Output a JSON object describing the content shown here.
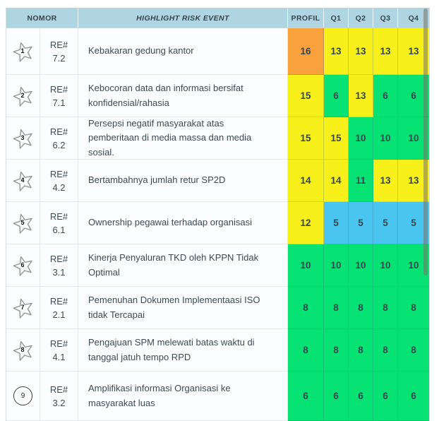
{
  "table": {
    "headers": {
      "nomor": "NOMOR",
      "event": "HIGHLIGHT RISK EVENT",
      "profil": "PROFIL",
      "quarters": [
        "Q1",
        "Q2",
        "Q3",
        "Q4"
      ]
    },
    "rows": [
      {
        "rank": "1",
        "badge_shape": "star",
        "re_label": "RE#",
        "re_code": "7.2",
        "event": "Kebakaran gedung kantor",
        "profil": {
          "value": "16",
          "color": "orange"
        },
        "quarters": [
          {
            "value": "13",
            "color": "yellow"
          },
          {
            "value": "13",
            "color": "yellow"
          },
          {
            "value": "13",
            "color": "yellow"
          },
          {
            "value": "13",
            "color": "yellow"
          }
        ]
      },
      {
        "rank": "2",
        "badge_shape": "star",
        "re_label": "RE#",
        "re_code": "7.1",
        "event": "Kebocoran data dan informasi bersifat konfidensial/rahasia",
        "profil": {
          "value": "15",
          "color": "yellow"
        },
        "quarters": [
          {
            "value": "6",
            "color": "green"
          },
          {
            "value": "13",
            "color": "yellow"
          },
          {
            "value": "6",
            "color": "green"
          },
          {
            "value": "6",
            "color": "green"
          }
        ]
      },
      {
        "rank": "3",
        "badge_shape": "star",
        "re_label": "RE#",
        "re_code": "6.2",
        "event": "Persepsi negatif masyarakat atas pemberitaan di media massa dan media sosial.",
        "profil": {
          "value": "15",
          "color": "yellow"
        },
        "quarters": [
          {
            "value": "15",
            "color": "yellow"
          },
          {
            "value": "10",
            "color": "green"
          },
          {
            "value": "10",
            "color": "green"
          },
          {
            "value": "10",
            "color": "green"
          }
        ]
      },
      {
        "rank": "4",
        "badge_shape": "star",
        "re_label": "RE#",
        "re_code": "4.2",
        "event": "Bertambahnya jumlah retur SP2D",
        "profil": {
          "value": "14",
          "color": "yellow"
        },
        "quarters": [
          {
            "value": "14",
            "color": "yellow"
          },
          {
            "value": "11",
            "color": "green"
          },
          {
            "value": "13",
            "color": "yellow"
          },
          {
            "value": "13",
            "color": "yellow"
          }
        ]
      },
      {
        "rank": "5",
        "badge_shape": "star",
        "re_label": "RE#",
        "re_code": "6.1",
        "event": "Ownership pegawai terhadap organisasi",
        "profil": {
          "value": "12",
          "color": "yellow"
        },
        "quarters": [
          {
            "value": "5",
            "color": "blue"
          },
          {
            "value": "5",
            "color": "blue"
          },
          {
            "value": "5",
            "color": "blue"
          },
          {
            "value": "5",
            "color": "blue"
          }
        ]
      },
      {
        "rank": "6",
        "badge_shape": "star",
        "re_label": "RE#",
        "re_code": "3.1",
        "event": "Kinerja Penyaluran TKD oleh KPPN Tidak Optimal",
        "profil": {
          "value": "10",
          "color": "green"
        },
        "quarters": [
          {
            "value": "10",
            "color": "green"
          },
          {
            "value": "10",
            "color": "green"
          },
          {
            "value": "10",
            "color": "green"
          },
          {
            "value": "10",
            "color": "green"
          }
        ]
      },
      {
        "rank": "7",
        "badge_shape": "star",
        "re_label": "RE#",
        "re_code": "2.1",
        "event": "Pemenuhan Dokumen Implementaasi ISO tidak Tercapai",
        "profil": {
          "value": "8",
          "color": "green"
        },
        "quarters": [
          {
            "value": "8",
            "color": "green"
          },
          {
            "value": "8",
            "color": "green"
          },
          {
            "value": "8",
            "color": "green"
          },
          {
            "value": "8",
            "color": "green"
          }
        ]
      },
      {
        "rank": "8",
        "badge_shape": "star",
        "re_label": "RE#",
        "re_code": "4.1",
        "event": "Pengajuan SPM melewati batas waktu di tanggal jatuh tempo RPD",
        "profil": {
          "value": "8",
          "color": "green"
        },
        "quarters": [
          {
            "value": "8",
            "color": "green"
          },
          {
            "value": "8",
            "color": "green"
          },
          {
            "value": "8",
            "color": "green"
          },
          {
            "value": "8",
            "color": "green"
          }
        ]
      },
      {
        "rank": "9",
        "badge_shape": "circle",
        "re_label": "RE#",
        "re_code": "3.2",
        "event": "Amplifikasi informasi Organisasi ke masyarakat luas",
        "profil": {
          "value": "6",
          "color": "green"
        },
        "quarters": [
          {
            "value": "6",
            "color": "green"
          },
          {
            "value": "6",
            "color": "green"
          },
          {
            "value": "6",
            "color": "green"
          },
          {
            "value": "6",
            "color": "green"
          }
        ]
      }
    ]
  },
  "colors": {
    "orange": "#F9A23D",
    "yellow": "#F8F01A",
    "green": "#06E374",
    "blue": "#49C5EF",
    "header_blue": "#AFD5E2"
  }
}
